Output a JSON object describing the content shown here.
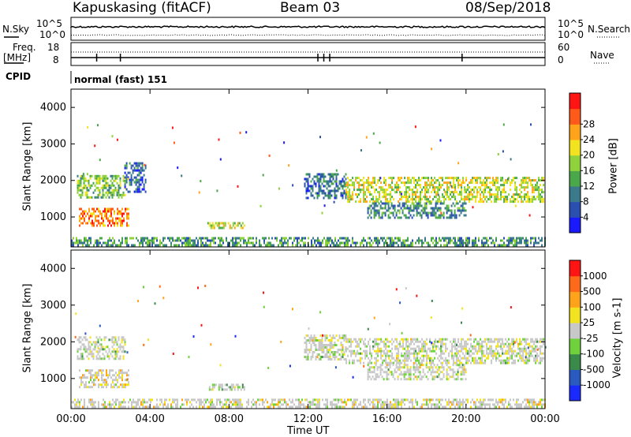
{
  "header": {
    "station": "Kapuskasing (fitACF)",
    "beam": "Beam 03",
    "date": "08/Sep/2018"
  },
  "top_panels": {
    "nsky_label": "N.Sky",
    "nsky_ticks": [
      "10^5",
      "10^0"
    ],
    "nsearch_label": "N.Search",
    "nsearch_ticks": [
      "10^5",
      "10^0"
    ],
    "freq_label_line1": "Freq.",
    "freq_label_line2": "[MHz]",
    "freq_ticks": [
      "18",
      "8"
    ],
    "nave_label": "Nave",
    "nave_ticks": [
      "60",
      "0"
    ],
    "cpid_label": "CPID",
    "cpid_value": "normal (fast) 151"
  },
  "chart_data": [
    {
      "type": "heatmap",
      "title": "",
      "xlabel": "",
      "ylabel": "Slant Range [km]",
      "x_ticks": [
        "00:00",
        "04:00",
        "08:00",
        "12:00",
        "16:00",
        "20:00",
        "00:00"
      ],
      "x_tick_hours": [
        0,
        4,
        8,
        12,
        16,
        20,
        24
      ],
      "y_ticks": [
        1000,
        2000,
        3000,
        4000
      ],
      "xlim": [
        0,
        24
      ],
      "ylim": [
        180,
        4500
      ],
      "colorbar": {
        "label": "Power [dB]",
        "ticks": [
          "4",
          "8",
          "12",
          "16",
          "20",
          "24",
          "28"
        ],
        "colors": [
          "#1a1aff",
          "#2a4fb0",
          "#3a7a8a",
          "#4aa84a",
          "#8fd23c",
          "#f2e31e",
          "#ffa31a",
          "#ff5a1a",
          "#ff1414"
        ]
      },
      "regions": [
        {
          "x": [
            0.3,
            2.7
          ],
          "y": [
            1550,
            2150
          ],
          "level": 0.45
        },
        {
          "x": [
            0.4,
            2.9
          ],
          "y": [
            780,
            1250
          ],
          "level": 0.78
        },
        {
          "x": [
            2.7,
            3.8
          ],
          "y": [
            1700,
            2500
          ],
          "level": 0.2
        },
        {
          "x": [
            6.9,
            8.8
          ],
          "y": [
            700,
            860
          ],
          "level": 0.55
        },
        {
          "x": [
            11.8,
            13.9
          ],
          "y": [
            1500,
            2200
          ],
          "level": 0.25
        },
        {
          "x": [
            13.9,
            23.9
          ],
          "y": [
            1400,
            2100
          ],
          "level": 0.55
        },
        {
          "x": [
            15.0,
            20.0
          ],
          "y": [
            1000,
            1400
          ],
          "level": 0.3
        },
        {
          "x": [
            0.0,
            24.0
          ],
          "y": [
            200,
            450
          ],
          "level": 0.35
        }
      ]
    },
    {
      "type": "heatmap",
      "title": "",
      "xlabel": "Time UT",
      "ylabel": "Slant Range [km]",
      "x_ticks": [
        "00:00",
        "04:00",
        "08:00",
        "12:00",
        "16:00",
        "20:00",
        "00:00"
      ],
      "x_tick_hours": [
        0,
        4,
        8,
        12,
        16,
        20,
        24
      ],
      "y_ticks": [
        1000,
        2000,
        3000,
        4000
      ],
      "xlim": [
        0,
        24
      ],
      "ylim": [
        180,
        4500
      ],
      "colorbar": {
        "label": "Velocity [m s-1]",
        "ticks": [
          "1000",
          "500",
          "100",
          "25",
          "-25",
          "-100",
          "-500",
          "-1000"
        ],
        "colors": [
          "#1a2aff",
          "#2a5abf",
          "#3a8a4a",
          "#6fd23c",
          "#c8c8c8",
          "#f2e31e",
          "#ffa31a",
          "#ff6a1a",
          "#ff1414"
        ]
      },
      "regions": [
        {
          "x": [
            0.3,
            2.7
          ],
          "y": [
            1550,
            2150
          ],
          "level": 0.48
        },
        {
          "x": [
            0.4,
            2.9
          ],
          "y": [
            780,
            1250
          ],
          "level": 0.6
        },
        {
          "x": [
            6.9,
            8.8
          ],
          "y": [
            700,
            860
          ],
          "level": 0.4
        },
        {
          "x": [
            11.8,
            13.9
          ],
          "y": [
            1500,
            2200
          ],
          "level": 0.5
        },
        {
          "x": [
            13.9,
            23.9
          ],
          "y": [
            1400,
            2100
          ],
          "level": 0.5
        },
        {
          "x": [
            15.0,
            20.0
          ],
          "y": [
            1000,
            1400
          ],
          "level": 0.5
        },
        {
          "x": [
            0.0,
            24.0
          ],
          "y": [
            200,
            450
          ],
          "level": 0.55
        }
      ]
    }
  ]
}
